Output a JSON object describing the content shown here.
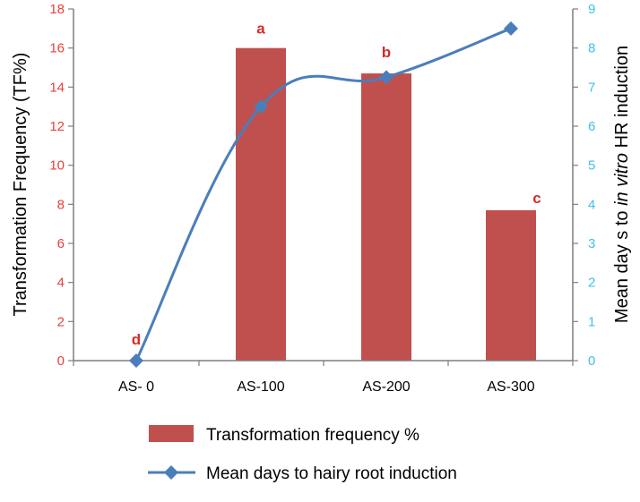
{
  "chart_data": {
    "type": "bar+line",
    "categories": [
      "AS- 0",
      "AS-100",
      "AS-200",
      "AS-300"
    ],
    "series": [
      {
        "name": "Transformation frequency %",
        "type": "bar",
        "axis": "left",
        "values": [
          0,
          16,
          14.7,
          7.7
        ],
        "labels": [
          "d",
          "a",
          "b",
          "c"
        ],
        "color": "#c0504d"
      },
      {
        "name": "Mean days to hairy root induction",
        "type": "line",
        "axis": "right",
        "values": [
          0,
          6.5,
          7.25,
          8.5
        ],
        "color": "#4a7ebb"
      }
    ],
    "y_left": {
      "label": "Transformation Frequency (TF%)",
      "lim": [
        0,
        18
      ],
      "ticks": [
        "0",
        "2",
        "4",
        "6",
        "8",
        "10",
        "12",
        "14",
        "16",
        "18"
      ],
      "tick_color": "#e8413a"
    },
    "y_right": {
      "label_before": "Mean day s to ",
      "label_italic": "in vitro",
      "label_after": " HR induction",
      "lim": [
        0,
        9
      ],
      "ticks": [
        "0",
        "1",
        "2",
        "3",
        "4",
        "5",
        "6",
        "7",
        "8",
        "9"
      ],
      "tick_color": "#3ec0ea"
    },
    "grid": false,
    "legend_position": "bottom"
  }
}
